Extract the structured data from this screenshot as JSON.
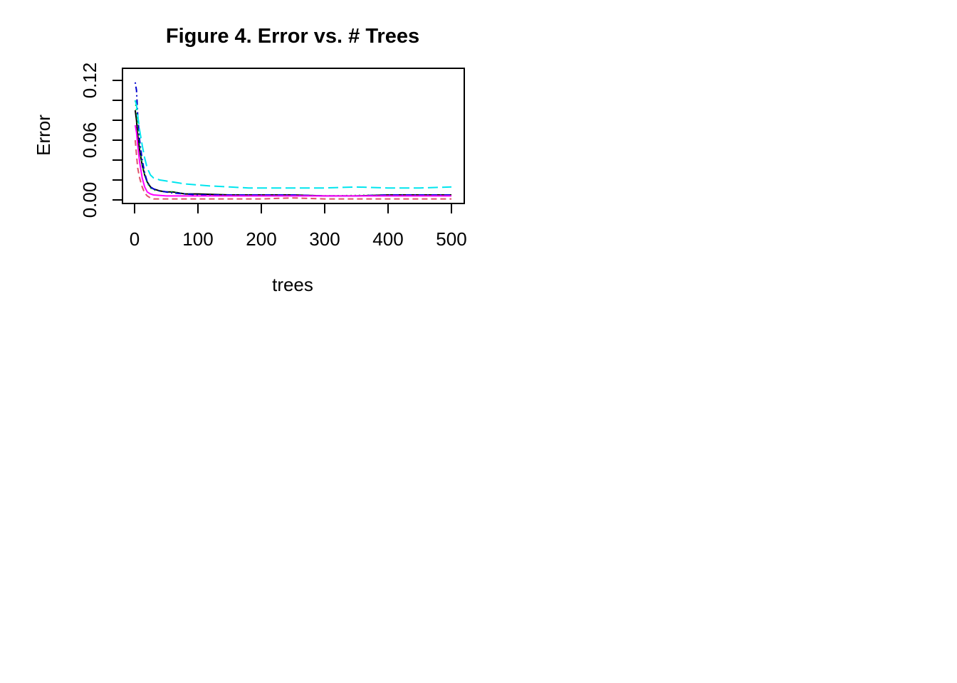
{
  "chart_data": {
    "type": "line",
    "title": "Figure 4. Error vs. # Trees",
    "xlabel": "trees",
    "ylabel": "Error",
    "xlim": [
      0,
      500
    ],
    "ylim": [
      0.0,
      0.122
    ],
    "x_ticks": [
      0,
      100,
      200,
      300,
      400,
      500
    ],
    "y_ticks": [
      0.0,
      0.02,
      0.04,
      0.06,
      0.08,
      0.1,
      0.12
    ],
    "y_tick_labels": [
      "0.00",
      "",
      "",
      "0.06",
      "",
      "",
      "0.12"
    ],
    "grid": false,
    "legend": "none",
    "series": [
      {
        "color": "#000000",
        "line_style": "solid",
        "points": [
          [
            1,
            0.09
          ],
          [
            3,
            0.08
          ],
          [
            5,
            0.065
          ],
          [
            8,
            0.05
          ],
          [
            12,
            0.035
          ],
          [
            16,
            0.025
          ],
          [
            20,
            0.018
          ],
          [
            25,
            0.013
          ],
          [
            30,
            0.011
          ],
          [
            40,
            0.009
          ],
          [
            50,
            0.008
          ],
          [
            60,
            0.008
          ],
          [
            80,
            0.006
          ],
          [
            100,
            0.006
          ],
          [
            150,
            0.005
          ],
          [
            200,
            0.005
          ],
          [
            250,
            0.005
          ],
          [
            300,
            0.004
          ],
          [
            350,
            0.004
          ],
          [
            400,
            0.005
          ],
          [
            450,
            0.005
          ],
          [
            500,
            0.005
          ]
        ]
      },
      {
        "color": "#DF536B",
        "line_style": "dashed",
        "points": [
          [
            1,
            0.06
          ],
          [
            3,
            0.045
          ],
          [
            5,
            0.032
          ],
          [
            8,
            0.022
          ],
          [
            12,
            0.013
          ],
          [
            16,
            0.007
          ],
          [
            20,
            0.004
          ],
          [
            25,
            0.002
          ],
          [
            30,
            0.001
          ],
          [
            50,
            0.001
          ],
          [
            100,
            0.001
          ],
          [
            150,
            0.001
          ],
          [
            200,
            0.001
          ],
          [
            250,
            0.002
          ],
          [
            300,
            0.001
          ],
          [
            350,
            0.001
          ],
          [
            400,
            0.001
          ],
          [
            450,
            0.001
          ],
          [
            500,
            0.001
          ]
        ]
      },
      {
        "color": "#00CD00",
        "line_style": "dotted",
        "points": [
          [
            1,
            0.1
          ],
          [
            3,
            0.09
          ],
          [
            5,
            0.075
          ],
          [
            8,
            0.055
          ],
          [
            12,
            0.035
          ],
          [
            16,
            0.025
          ],
          [
            20,
            0.017
          ],
          [
            25,
            0.012
          ],
          [
            30,
            0.01
          ],
          [
            40,
            0.009
          ],
          [
            50,
            0.008
          ],
          [
            60,
            0.008
          ],
          [
            80,
            0.006
          ],
          [
            100,
            0.005
          ],
          [
            150,
            0.005
          ],
          [
            200,
            0.005
          ],
          [
            300,
            0.004
          ],
          [
            400,
            0.005
          ],
          [
            500,
            0.005
          ]
        ]
      },
      {
        "color": "#0000CD",
        "line_style": "dotdash",
        "points": [
          [
            1,
            0.118
          ],
          [
            3,
            0.11
          ],
          [
            5,
            0.085
          ],
          [
            8,
            0.06
          ],
          [
            12,
            0.04
          ],
          [
            16,
            0.027
          ],
          [
            20,
            0.018
          ],
          [
            25,
            0.013
          ],
          [
            30,
            0.011
          ],
          [
            40,
            0.009
          ],
          [
            50,
            0.008
          ],
          [
            60,
            0.007
          ],
          [
            80,
            0.006
          ],
          [
            100,
            0.005
          ],
          [
            150,
            0.005
          ],
          [
            200,
            0.005
          ],
          [
            250,
            0.005
          ],
          [
            300,
            0.004
          ],
          [
            350,
            0.004
          ],
          [
            400,
            0.005
          ],
          [
            450,
            0.005
          ],
          [
            500,
            0.005
          ]
        ]
      },
      {
        "color": "#00E5EE",
        "line_style": "longdash",
        "points": [
          [
            1,
            0.1
          ],
          [
            3,
            0.095
          ],
          [
            5,
            0.085
          ],
          [
            8,
            0.07
          ],
          [
            12,
            0.055
          ],
          [
            16,
            0.042
          ],
          [
            20,
            0.032
          ],
          [
            25,
            0.025
          ],
          [
            30,
            0.022
          ],
          [
            40,
            0.02
          ],
          [
            50,
            0.019
          ],
          [
            60,
            0.018
          ],
          [
            80,
            0.016
          ],
          [
            100,
            0.015
          ],
          [
            120,
            0.014
          ],
          [
            150,
            0.013
          ],
          [
            180,
            0.012
          ],
          [
            200,
            0.012
          ],
          [
            250,
            0.012
          ],
          [
            300,
            0.012
          ],
          [
            350,
            0.013
          ],
          [
            400,
            0.012
          ],
          [
            450,
            0.012
          ],
          [
            500,
            0.013
          ]
        ]
      },
      {
        "color": "#FF00FF",
        "line_style": "solid",
        "points": [
          [
            1,
            0.075
          ],
          [
            3,
            0.068
          ],
          [
            5,
            0.055
          ],
          [
            8,
            0.038
          ],
          [
            12,
            0.022
          ],
          [
            16,
            0.013
          ],
          [
            20,
            0.008
          ],
          [
            25,
            0.006
          ],
          [
            30,
            0.005
          ],
          [
            50,
            0.004
          ],
          [
            100,
            0.004
          ],
          [
            150,
            0.004
          ],
          [
            200,
            0.004
          ],
          [
            250,
            0.004
          ],
          [
            300,
            0.004
          ],
          [
            350,
            0.004
          ],
          [
            400,
            0.004
          ],
          [
            450,
            0.004
          ],
          [
            500,
            0.004
          ]
        ]
      }
    ]
  }
}
